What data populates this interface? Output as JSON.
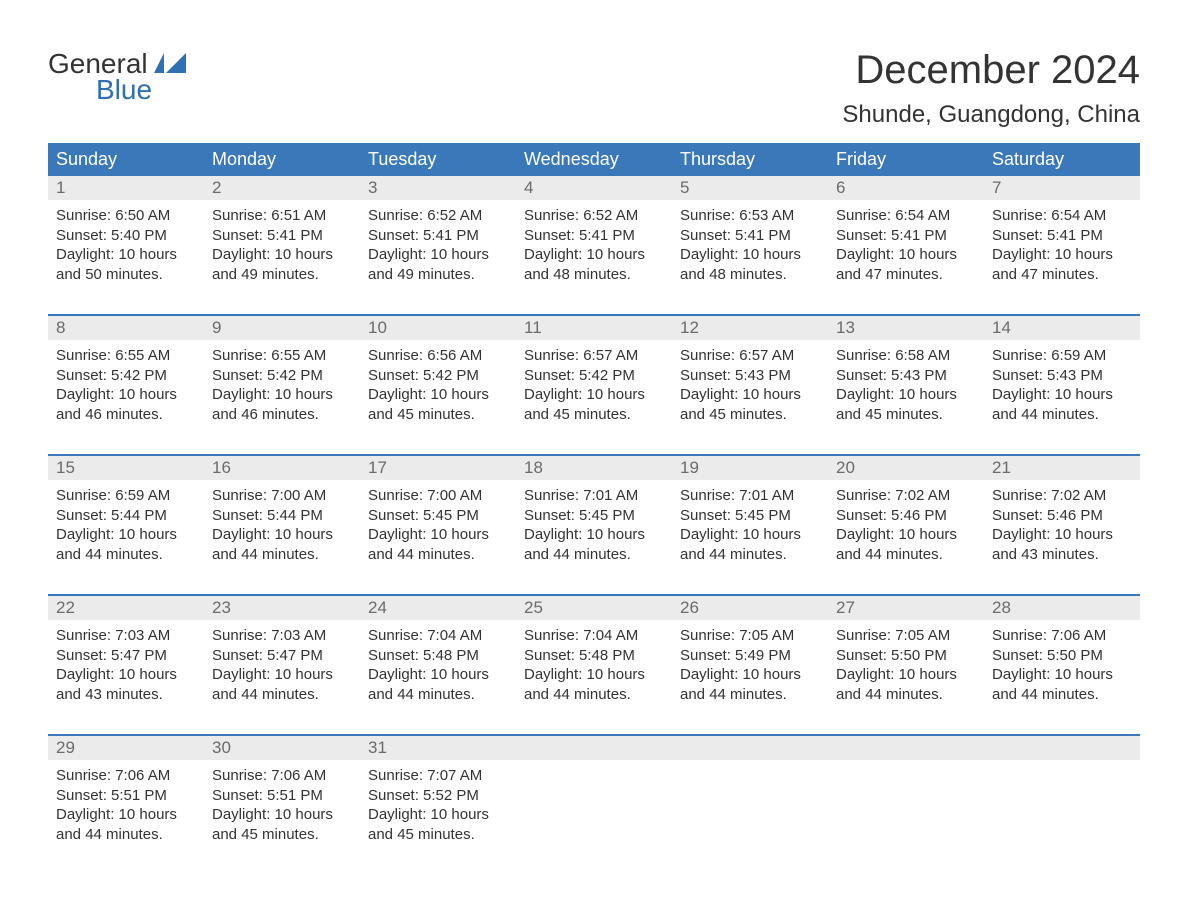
{
  "logo": {
    "general": "General",
    "blue": "Blue"
  },
  "title": "December 2024",
  "location": "Shunde, Guangdong, China",
  "colors": {
    "header_bg": "#3a78b9",
    "header_text": "#ffffff",
    "daynum_bg": "#ebebeb",
    "daynum_text": "#6b6b6b",
    "body_text": "#333333",
    "logo_blue": "#2f6fb3",
    "week_border": "#3a78b9",
    "background": "#ffffff"
  },
  "typography": {
    "title_fontsize": 40,
    "location_fontsize": 24,
    "weekday_fontsize": 18,
    "daynum_fontsize": 17,
    "body_fontsize": 15,
    "font_family": "Arial"
  },
  "weekdays": [
    "Sunday",
    "Monday",
    "Tuesday",
    "Wednesday",
    "Thursday",
    "Friday",
    "Saturday"
  ],
  "labels": {
    "sunrise": "Sunrise: ",
    "sunset": "Sunset: ",
    "daylight_prefix": "Daylight: "
  },
  "days": [
    {
      "n": "1",
      "sunrise": "6:50 AM",
      "sunset": "5:40 PM",
      "daylight": "10 hours and 50 minutes."
    },
    {
      "n": "2",
      "sunrise": "6:51 AM",
      "sunset": "5:41 PM",
      "daylight": "10 hours and 49 minutes."
    },
    {
      "n": "3",
      "sunrise": "6:52 AM",
      "sunset": "5:41 PM",
      "daylight": "10 hours and 49 minutes."
    },
    {
      "n": "4",
      "sunrise": "6:52 AM",
      "sunset": "5:41 PM",
      "daylight": "10 hours and 48 minutes."
    },
    {
      "n": "5",
      "sunrise": "6:53 AM",
      "sunset": "5:41 PM",
      "daylight": "10 hours and 48 minutes."
    },
    {
      "n": "6",
      "sunrise": "6:54 AM",
      "sunset": "5:41 PM",
      "daylight": "10 hours and 47 minutes."
    },
    {
      "n": "7",
      "sunrise": "6:54 AM",
      "sunset": "5:41 PM",
      "daylight": "10 hours and 47 minutes."
    },
    {
      "n": "8",
      "sunrise": "6:55 AM",
      "sunset": "5:42 PM",
      "daylight": "10 hours and 46 minutes."
    },
    {
      "n": "9",
      "sunrise": "6:55 AM",
      "sunset": "5:42 PM",
      "daylight": "10 hours and 46 minutes."
    },
    {
      "n": "10",
      "sunrise": "6:56 AM",
      "sunset": "5:42 PM",
      "daylight": "10 hours and 45 minutes."
    },
    {
      "n": "11",
      "sunrise": "6:57 AM",
      "sunset": "5:42 PM",
      "daylight": "10 hours and 45 minutes."
    },
    {
      "n": "12",
      "sunrise": "6:57 AM",
      "sunset": "5:43 PM",
      "daylight": "10 hours and 45 minutes."
    },
    {
      "n": "13",
      "sunrise": "6:58 AM",
      "sunset": "5:43 PM",
      "daylight": "10 hours and 45 minutes."
    },
    {
      "n": "14",
      "sunrise": "6:59 AM",
      "sunset": "5:43 PM",
      "daylight": "10 hours and 44 minutes."
    },
    {
      "n": "15",
      "sunrise": "6:59 AM",
      "sunset": "5:44 PM",
      "daylight": "10 hours and 44 minutes."
    },
    {
      "n": "16",
      "sunrise": "7:00 AM",
      "sunset": "5:44 PM",
      "daylight": "10 hours and 44 minutes."
    },
    {
      "n": "17",
      "sunrise": "7:00 AM",
      "sunset": "5:45 PM",
      "daylight": "10 hours and 44 minutes."
    },
    {
      "n": "18",
      "sunrise": "7:01 AM",
      "sunset": "5:45 PM",
      "daylight": "10 hours and 44 minutes."
    },
    {
      "n": "19",
      "sunrise": "7:01 AM",
      "sunset": "5:45 PM",
      "daylight": "10 hours and 44 minutes."
    },
    {
      "n": "20",
      "sunrise": "7:02 AM",
      "sunset": "5:46 PM",
      "daylight": "10 hours and 44 minutes."
    },
    {
      "n": "21",
      "sunrise": "7:02 AM",
      "sunset": "5:46 PM",
      "daylight": "10 hours and 43 minutes."
    },
    {
      "n": "22",
      "sunrise": "7:03 AM",
      "sunset": "5:47 PM",
      "daylight": "10 hours and 43 minutes."
    },
    {
      "n": "23",
      "sunrise": "7:03 AM",
      "sunset": "5:47 PM",
      "daylight": "10 hours and 44 minutes."
    },
    {
      "n": "24",
      "sunrise": "7:04 AM",
      "sunset": "5:48 PM",
      "daylight": "10 hours and 44 minutes."
    },
    {
      "n": "25",
      "sunrise": "7:04 AM",
      "sunset": "5:48 PM",
      "daylight": "10 hours and 44 minutes."
    },
    {
      "n": "26",
      "sunrise": "7:05 AM",
      "sunset": "5:49 PM",
      "daylight": "10 hours and 44 minutes."
    },
    {
      "n": "27",
      "sunrise": "7:05 AM",
      "sunset": "5:50 PM",
      "daylight": "10 hours and 44 minutes."
    },
    {
      "n": "28",
      "sunrise": "7:06 AM",
      "sunset": "5:50 PM",
      "daylight": "10 hours and 44 minutes."
    },
    {
      "n": "29",
      "sunrise": "7:06 AM",
      "sunset": "5:51 PM",
      "daylight": "10 hours and 44 minutes."
    },
    {
      "n": "30",
      "sunrise": "7:06 AM",
      "sunset": "5:51 PM",
      "daylight": "10 hours and 45 minutes."
    },
    {
      "n": "31",
      "sunrise": "7:07 AM",
      "sunset": "5:52 PM",
      "daylight": "10 hours and 45 minutes."
    }
  ]
}
